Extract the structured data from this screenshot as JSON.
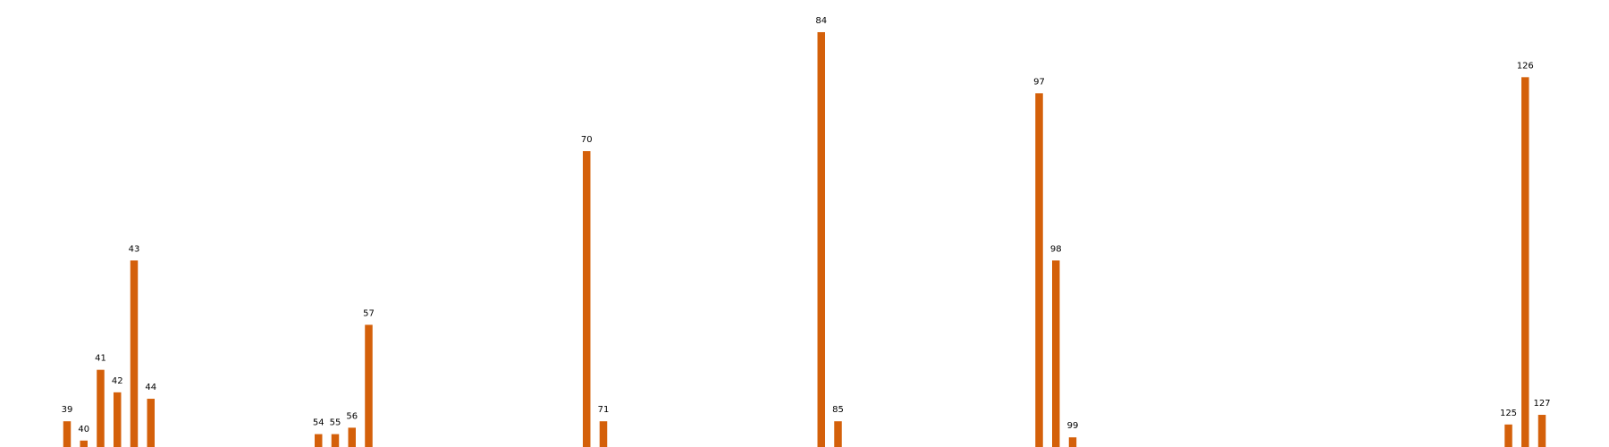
{
  "chart_data": {
    "type": "bar",
    "title": "",
    "xlabel": "",
    "ylabel": "",
    "grid": false,
    "legend": "none",
    "x": [
      39,
      40,
      41,
      42,
      43,
      44,
      54,
      55,
      56,
      57,
      70,
      71,
      84,
      85,
      97,
      98,
      99,
      125,
      126,
      127
    ],
    "labels": [
      "39",
      "40",
      "41",
      "42",
      "43",
      "44",
      "54",
      "55",
      "56",
      "57",
      "70",
      "71",
      "84",
      "85",
      "97",
      "98",
      "99",
      "125",
      "126",
      "127"
    ],
    "values": [
      4.0,
      1.0,
      12.0,
      8.5,
      29.0,
      7.5,
      2.0,
      2.0,
      3.0,
      19.0,
      46.0,
      4.0,
      64.5,
      4.0,
      55.0,
      29.0,
      1.5,
      3.5,
      57.5,
      5.0
    ],
    "xlim": [
      35,
      131
    ],
    "ylim": [
      0,
      67
    ],
    "colors": {
      "bar": "#d4600a",
      "label": "#000000"
    }
  }
}
